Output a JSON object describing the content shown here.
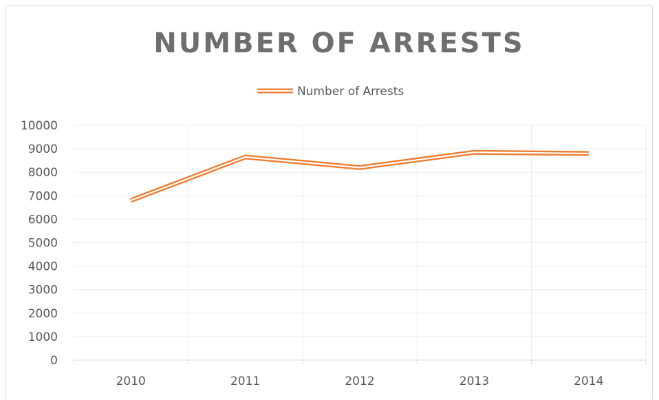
{
  "chart_data": {
    "type": "line",
    "title": "NUMBER OF ARRESTS",
    "xlabel": "",
    "ylabel": "",
    "categories": [
      "2010",
      "2011",
      "2012",
      "2013",
      "2014"
    ],
    "series": [
      {
        "name": "Number of Arrests",
        "values": [
          6800,
          8650,
          8200,
          8850,
          8800
        ]
      }
    ],
    "ylim": [
      0,
      10000
    ],
    "yticks": [
      "0",
      "1000",
      "2000",
      "3000",
      "4000",
      "5000",
      "6000",
      "7000",
      "8000",
      "9000",
      "10000"
    ],
    "grid": true,
    "legend": "top-center",
    "colors": {
      "series": "#ed7d31",
      "grid": "#ebebeb",
      "axis": "#d9d9d9",
      "text": "#595959",
      "title": "#6e6e6e"
    }
  }
}
